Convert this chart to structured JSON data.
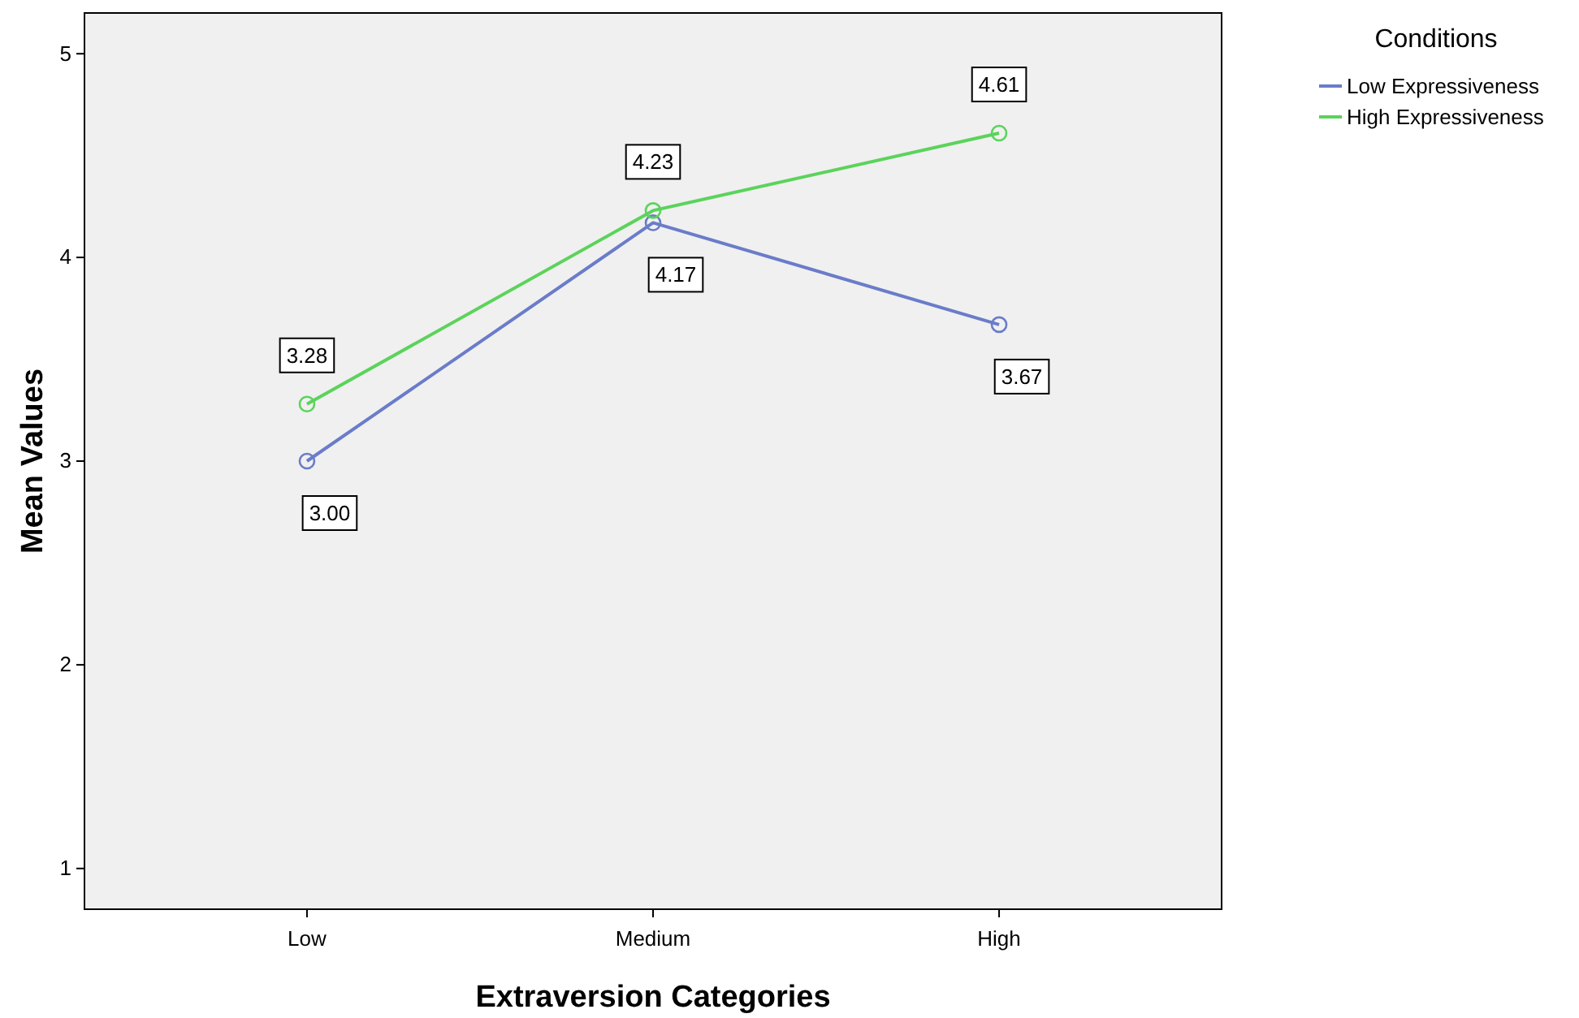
{
  "chart_data": {
    "type": "line",
    "xlabel": "Extraversion Categories",
    "ylabel": "Mean Values",
    "legend_title": "Conditions",
    "categories": [
      "Low",
      "Medium",
      "High"
    ],
    "series": [
      {
        "name": "Low Expressiveness",
        "color": "#6a7cc9",
        "values": [
          3.0,
          4.17,
          3.67
        ],
        "value_labels": [
          "3.00",
          "4.17",
          "3.67"
        ]
      },
      {
        "name": "High Expressiveness",
        "color": "#5bd35b",
        "values": [
          3.28,
          4.23,
          4.61
        ],
        "value_labels": [
          "3.28",
          "4.23",
          "4.61"
        ]
      }
    ],
    "ylim": [
      0.8,
      5.2
    ],
    "yticks": [
      1,
      2,
      3,
      4,
      5
    ],
    "grid": false,
    "legend": "top right",
    "marker": "circle",
    "line_style": "solid"
  }
}
